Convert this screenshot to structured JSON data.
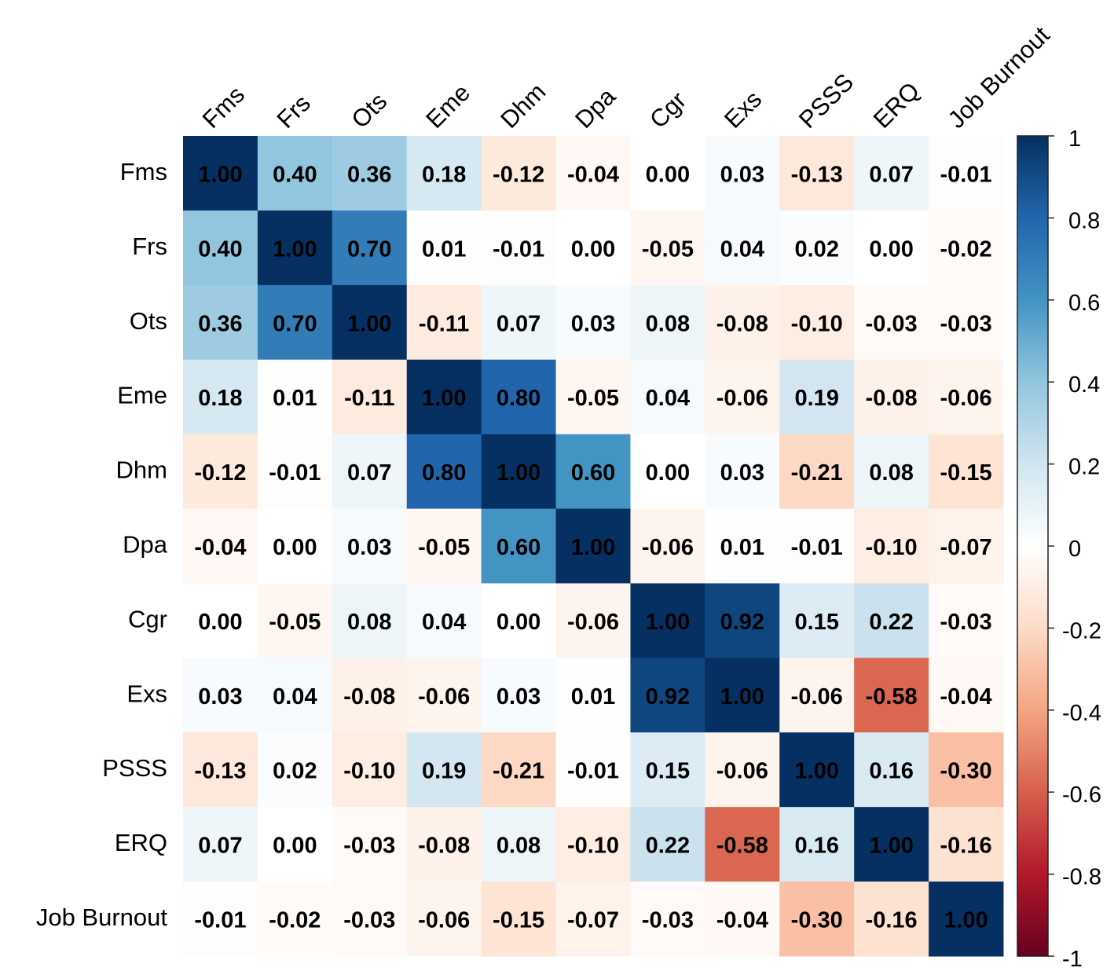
{
  "chart_data": {
    "type": "heatmap",
    "title": "",
    "variables": [
      "Fms",
      "Frs",
      "Ots",
      "Eme",
      "Dhm",
      "Dpa",
      "Cgr",
      "Exs",
      "PSSS",
      "ERQ",
      "Job Burnout"
    ],
    "values": [
      [
        "1.00",
        "0.40",
        "0.36",
        "0.18",
        "-0.12",
        "-0.04",
        "0.00",
        "0.03",
        "-0.13",
        "0.07",
        "-0.01"
      ],
      [
        "0.40",
        "1.00",
        "0.70",
        "0.01",
        "-0.01",
        "0.00",
        "-0.05",
        "0.04",
        "0.02",
        "0.00",
        "-0.02"
      ],
      [
        "0.36",
        "0.70",
        "1.00",
        "-0.11",
        "0.07",
        "0.03",
        "0.08",
        "-0.08",
        "-0.10",
        "-0.03",
        "-0.03"
      ],
      [
        "0.18",
        "0.01",
        "-0.11",
        "1.00",
        "0.80",
        "-0.05",
        "0.04",
        "-0.06",
        "0.19",
        "-0.08",
        "-0.06"
      ],
      [
        "-0.12",
        "-0.01",
        "0.07",
        "0.80",
        "1.00",
        "0.60",
        "0.00",
        "0.03",
        "-0.21",
        "0.08",
        "-0.15"
      ],
      [
        "-0.04",
        "0.00",
        "0.03",
        "-0.05",
        "0.60",
        "1.00",
        "-0.06",
        "0.01",
        "-0.01",
        "-0.10",
        "-0.07"
      ],
      [
        "0.00",
        "-0.05",
        "0.08",
        "0.04",
        "0.00",
        "-0.06",
        "1.00",
        "0.92",
        "0.15",
        "0.22",
        "-0.03"
      ],
      [
        "0.03",
        "0.04",
        "-0.08",
        "-0.06",
        "0.03",
        "0.01",
        "0.92",
        "1.00",
        "-0.06",
        "-0.58",
        "-0.04"
      ],
      [
        "-0.13",
        "0.02",
        "-0.10",
        "0.19",
        "-0.21",
        "-0.01",
        "0.15",
        "-0.06",
        "1.00",
        "0.16",
        "-0.30"
      ],
      [
        "0.07",
        "0.00",
        "-0.03",
        "-0.08",
        "0.08",
        "-0.10",
        "0.22",
        "-0.58",
        "0.16",
        "1.00",
        "-0.16"
      ],
      [
        "-0.01",
        "-0.02",
        "-0.03",
        "-0.06",
        "-0.15",
        "-0.07",
        "-0.03",
        "-0.04",
        "-0.30",
        "-0.16",
        "1.00"
      ]
    ],
    "colorbar": {
      "range": [
        -1,
        1
      ],
      "ticks": [
        "1",
        "0.8",
        "0.6",
        "0.4",
        "0.2",
        "0",
        "-0.2",
        "-0.4",
        "-0.6",
        "-0.8",
        "-1"
      ],
      "palette": [
        "#67001F",
        "#B2182B",
        "#D6604D",
        "#F4A582",
        "#FDDBC7",
        "#FFFFFF",
        "#D1E5F0",
        "#92C5DE",
        "#4393C3",
        "#2166AC",
        "#053061"
      ]
    }
  }
}
